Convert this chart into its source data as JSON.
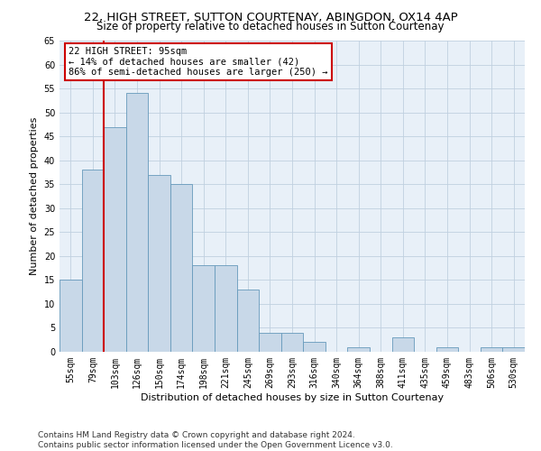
{
  "title1": "22, HIGH STREET, SUTTON COURTENAY, ABINGDON, OX14 4AP",
  "title2": "Size of property relative to detached houses in Sutton Courtenay",
  "xlabel": "Distribution of detached houses by size in Sutton Courtenay",
  "ylabel": "Number of detached properties",
  "categories": [
    "55sqm",
    "79sqm",
    "103sqm",
    "126sqm",
    "150sqm",
    "174sqm",
    "198sqm",
    "221sqm",
    "245sqm",
    "269sqm",
    "293sqm",
    "316sqm",
    "340sqm",
    "364sqm",
    "388sqm",
    "411sqm",
    "435sqm",
    "459sqm",
    "483sqm",
    "506sqm",
    "530sqm"
  ],
  "values": [
    15,
    38,
    47,
    54,
    37,
    35,
    18,
    18,
    13,
    4,
    4,
    2,
    0,
    1,
    0,
    3,
    0,
    1,
    0,
    1,
    1
  ],
  "bar_color": "#c8d8e8",
  "bar_edge_color": "#6699bb",
  "highlight_color": "#cc0000",
  "annotation_text": "22 HIGH STREET: 95sqm\n← 14% of detached houses are smaller (42)\n86% of semi-detached houses are larger (250) →",
  "annotation_box_color": "#ffffff",
  "annotation_box_edge": "#cc0000",
  "footer": "Contains HM Land Registry data © Crown copyright and database right 2024.\nContains public sector information licensed under the Open Government Licence v3.0.",
  "ylim": [
    0,
    65
  ],
  "yticks": [
    0,
    5,
    10,
    15,
    20,
    25,
    30,
    35,
    40,
    45,
    50,
    55,
    60,
    65
  ],
  "bg_color": "#ffffff",
  "plot_bg_color": "#e8f0f8",
  "grid_color": "#c0d0e0",
  "title1_fontsize": 9.5,
  "title2_fontsize": 8.5,
  "tick_fontsize": 7,
  "ylabel_fontsize": 8,
  "xlabel_fontsize": 8,
  "annotation_fontsize": 7.5,
  "footer_fontsize": 6.5
}
